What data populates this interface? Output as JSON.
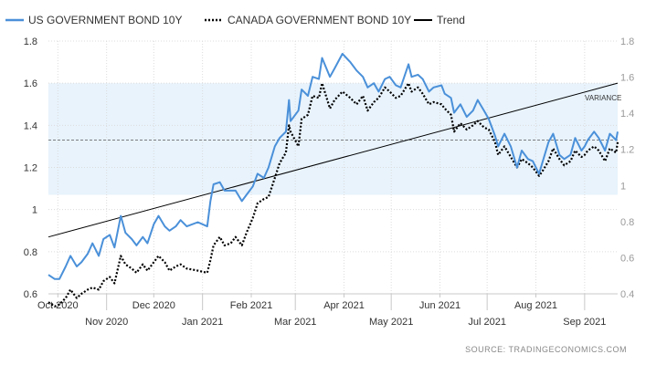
{
  "chart_data": {
    "type": "line",
    "legend": [
      {
        "key": "us",
        "label": "US GOVERNMENT BOND 10Y",
        "color": "#4a90d9",
        "style": "solid"
      },
      {
        "key": "canada",
        "label": "CANADA GOVERNMENT BOND 10Y",
        "color": "#000000",
        "style": "dotted"
      },
      {
        "key": "trend",
        "label": "Trend",
        "color": "#000000",
        "style": "solid"
      }
    ],
    "legend_placement": "top-left",
    "x_ticks_top_row": [
      {
        "label": "Oct 2020",
        "date": "2020-10-01"
      },
      {
        "label": "Dec 2020",
        "date": "2020-12-01"
      },
      {
        "label": "Feb 2021",
        "date": "2021-02-01"
      },
      {
        "label": "Apr 2021",
        "date": "2021-04-01"
      },
      {
        "label": "Jun 2021",
        "date": "2021-06-01"
      },
      {
        "label": "Aug 2021",
        "date": "2021-08-01"
      }
    ],
    "x_ticks_bottom_row": [
      {
        "label": "Nov 2020",
        "date": "2020-11-01"
      },
      {
        "label": "Jan 2021",
        "date": "2021-01-01"
      },
      {
        "label": "Mar 2021",
        "date": "2021-03-01"
      },
      {
        "label": "May 2021",
        "date": "2021-05-01"
      },
      {
        "label": "Jul 2021",
        "date": "2021-07-01"
      },
      {
        "label": "Sep 2021",
        "date": "2021-09-01"
      }
    ],
    "x_range": [
      "2020-09-25",
      "2021-09-22"
    ],
    "y_left": {
      "ticks": [
        "0.6",
        "0.8",
        "1",
        "1.2",
        "1.4",
        "1.6",
        "1.8"
      ],
      "range": [
        0.6,
        1.8
      ]
    },
    "y_right": {
      "ticks": [
        "0.4",
        "0.6",
        "0.8",
        "1",
        "1.2",
        "1.4",
        "1.6",
        "1.8"
      ],
      "range": [
        0.4,
        1.8
      ]
    },
    "grid": true,
    "variance_band": {
      "label": "VARIANCE",
      "from": 1.07,
      "to": 1.6,
      "color": "#e8f3fc"
    },
    "mean_line": 1.33,
    "trend": {
      "start": [
        "2020-09-25",
        0.87
      ],
      "end": [
        "2021-09-22",
        1.6
      ]
    },
    "series": [
      {
        "key": "us",
        "name": "US GOVERNMENT BOND 10Y",
        "color": "#4a90d9",
        "points": [
          [
            "2020-09-25",
            0.69
          ],
          [
            "2020-09-29",
            0.67
          ],
          [
            "2020-10-02",
            0.67
          ],
          [
            "2020-10-06",
            0.73
          ],
          [
            "2020-10-09",
            0.78
          ],
          [
            "2020-10-13",
            0.73
          ],
          [
            "2020-10-16",
            0.75
          ],
          [
            "2020-10-20",
            0.79
          ],
          [
            "2020-10-23",
            0.84
          ],
          [
            "2020-10-27",
            0.78
          ],
          [
            "2020-10-30",
            0.86
          ],
          [
            "2020-11-03",
            0.88
          ],
          [
            "2020-11-06",
            0.82
          ],
          [
            "2020-11-10",
            0.97
          ],
          [
            "2020-11-13",
            0.89
          ],
          [
            "2020-11-17",
            0.86
          ],
          [
            "2020-11-20",
            0.83
          ],
          [
            "2020-11-24",
            0.87
          ],
          [
            "2020-11-27",
            0.84
          ],
          [
            "2020-12-01",
            0.93
          ],
          [
            "2020-12-04",
            0.97
          ],
          [
            "2020-12-08",
            0.92
          ],
          [
            "2020-12-11",
            0.9
          ],
          [
            "2020-12-15",
            0.92
          ],
          [
            "2020-12-18",
            0.95
          ],
          [
            "2020-12-22",
            0.92
          ],
          [
            "2020-12-29",
            0.94
          ],
          [
            "2021-01-04",
            0.92
          ],
          [
            "2021-01-06",
            1.04
          ],
          [
            "2021-01-08",
            1.12
          ],
          [
            "2021-01-12",
            1.13
          ],
          [
            "2021-01-15",
            1.09
          ],
          [
            "2021-01-19",
            1.09
          ],
          [
            "2021-01-22",
            1.09
          ],
          [
            "2021-01-26",
            1.04
          ],
          [
            "2021-01-29",
            1.07
          ],
          [
            "2021-02-02",
            1.11
          ],
          [
            "2021-02-05",
            1.17
          ],
          [
            "2021-02-09",
            1.15
          ],
          [
            "2021-02-12",
            1.2
          ],
          [
            "2021-02-16",
            1.3
          ],
          [
            "2021-02-19",
            1.34
          ],
          [
            "2021-02-23",
            1.37
          ],
          [
            "2021-02-25",
            1.52
          ],
          [
            "2021-02-26",
            1.42
          ],
          [
            "2021-03-03",
            1.47
          ],
          [
            "2021-03-05",
            1.57
          ],
          [
            "2021-03-09",
            1.54
          ],
          [
            "2021-03-12",
            1.63
          ],
          [
            "2021-03-16",
            1.62
          ],
          [
            "2021-03-18",
            1.72
          ],
          [
            "2021-03-23",
            1.63
          ],
          [
            "2021-03-26",
            1.67
          ],
          [
            "2021-03-31",
            1.74
          ],
          [
            "2021-04-05",
            1.7
          ],
          [
            "2021-04-09",
            1.66
          ],
          [
            "2021-04-13",
            1.63
          ],
          [
            "2021-04-16",
            1.58
          ],
          [
            "2021-04-20",
            1.6
          ],
          [
            "2021-04-23",
            1.56
          ],
          [
            "2021-04-27",
            1.62
          ],
          [
            "2021-04-30",
            1.63
          ],
          [
            "2021-05-04",
            1.59
          ],
          [
            "2021-05-07",
            1.58
          ],
          [
            "2021-05-12",
            1.69
          ],
          [
            "2021-05-14",
            1.63
          ],
          [
            "2021-05-18",
            1.64
          ],
          [
            "2021-05-21",
            1.62
          ],
          [
            "2021-05-25",
            1.56
          ],
          [
            "2021-05-28",
            1.58
          ],
          [
            "2021-06-02",
            1.59
          ],
          [
            "2021-06-04",
            1.55
          ],
          [
            "2021-06-08",
            1.53
          ],
          [
            "2021-06-10",
            1.46
          ],
          [
            "2021-06-14",
            1.5
          ],
          [
            "2021-06-18",
            1.44
          ],
          [
            "2021-06-22",
            1.47
          ],
          [
            "2021-06-25",
            1.52
          ],
          [
            "2021-06-29",
            1.47
          ],
          [
            "2021-07-02",
            1.43
          ],
          [
            "2021-07-06",
            1.35
          ],
          [
            "2021-07-08",
            1.3
          ],
          [
            "2021-07-12",
            1.36
          ],
          [
            "2021-07-16",
            1.3
          ],
          [
            "2021-07-20",
            1.2
          ],
          [
            "2021-07-23",
            1.28
          ],
          [
            "2021-07-27",
            1.24
          ],
          [
            "2021-07-30",
            1.23
          ],
          [
            "2021-08-03",
            1.17
          ],
          [
            "2021-08-05",
            1.22
          ],
          [
            "2021-08-09",
            1.32
          ],
          [
            "2021-08-12",
            1.36
          ],
          [
            "2021-08-16",
            1.26
          ],
          [
            "2021-08-19",
            1.24
          ],
          [
            "2021-08-23",
            1.26
          ],
          [
            "2021-08-26",
            1.34
          ],
          [
            "2021-08-30",
            1.28
          ],
          [
            "2021-09-01",
            1.3
          ],
          [
            "2021-09-03",
            1.33
          ],
          [
            "2021-09-07",
            1.37
          ],
          [
            "2021-09-10",
            1.34
          ],
          [
            "2021-09-14",
            1.28
          ],
          [
            "2021-09-17",
            1.36
          ],
          [
            "2021-09-21",
            1.33
          ],
          [
            "2021-09-22",
            1.37
          ]
        ]
      },
      {
        "key": "canada",
        "name": "CANADA GOVERNMENT BOND 10Y",
        "color": "#000000",
        "points": [
          [
            "2020-09-25",
            0.56
          ],
          [
            "2020-09-29",
            0.54
          ],
          [
            "2020-10-02",
            0.55
          ],
          [
            "2020-10-06",
            0.58
          ],
          [
            "2020-10-09",
            0.62
          ],
          [
            "2020-10-13",
            0.58
          ],
          [
            "2020-10-16",
            0.6
          ],
          [
            "2020-10-20",
            0.62
          ],
          [
            "2020-10-23",
            0.63
          ],
          [
            "2020-10-27",
            0.62
          ],
          [
            "2020-10-30",
            0.66
          ],
          [
            "2020-11-03",
            0.68
          ],
          [
            "2020-11-06",
            0.65
          ],
          [
            "2020-11-10",
            0.78
          ],
          [
            "2020-11-13",
            0.74
          ],
          [
            "2020-11-17",
            0.72
          ],
          [
            "2020-11-20",
            0.7
          ],
          [
            "2020-11-24",
            0.74
          ],
          [
            "2020-11-27",
            0.71
          ],
          [
            "2020-12-01",
            0.75
          ],
          [
            "2020-12-04",
            0.78
          ],
          [
            "2020-12-08",
            0.75
          ],
          [
            "2020-12-11",
            0.71
          ],
          [
            "2020-12-15",
            0.73
          ],
          [
            "2020-12-18",
            0.74
          ],
          [
            "2020-12-22",
            0.72
          ],
          [
            "2020-12-29",
            0.71
          ],
          [
            "2021-01-04",
            0.7
          ],
          [
            "2021-01-06",
            0.76
          ],
          [
            "2021-01-08",
            0.83
          ],
          [
            "2021-01-12",
            0.87
          ],
          [
            "2021-01-15",
            0.83
          ],
          [
            "2021-01-19",
            0.84
          ],
          [
            "2021-01-22",
            0.87
          ],
          [
            "2021-01-26",
            0.83
          ],
          [
            "2021-01-29",
            0.89
          ],
          [
            "2021-02-02",
            0.96
          ],
          [
            "2021-02-05",
            1.03
          ],
          [
            "2021-02-09",
            1.05
          ],
          [
            "2021-02-12",
            1.06
          ],
          [
            "2021-02-16",
            1.15
          ],
          [
            "2021-02-19",
            1.22
          ],
          [
            "2021-02-23",
            1.27
          ],
          [
            "2021-02-25",
            1.4
          ],
          [
            "2021-02-26",
            1.37
          ],
          [
            "2021-03-03",
            1.3
          ],
          [
            "2021-03-05",
            1.43
          ],
          [
            "2021-03-09",
            1.45
          ],
          [
            "2021-03-12",
            1.54
          ],
          [
            "2021-03-16",
            1.53
          ],
          [
            "2021-03-18",
            1.6
          ],
          [
            "2021-03-23",
            1.48
          ],
          [
            "2021-03-26",
            1.52
          ],
          [
            "2021-03-31",
            1.56
          ],
          [
            "2021-04-05",
            1.53
          ],
          [
            "2021-04-09",
            1.5
          ],
          [
            "2021-04-13",
            1.54
          ],
          [
            "2021-04-16",
            1.47
          ],
          [
            "2021-04-20",
            1.51
          ],
          [
            "2021-04-23",
            1.53
          ],
          [
            "2021-04-27",
            1.58
          ],
          [
            "2021-04-30",
            1.56
          ],
          [
            "2021-05-04",
            1.53
          ],
          [
            "2021-05-07",
            1.54
          ],
          [
            "2021-05-12",
            1.6
          ],
          [
            "2021-05-14",
            1.56
          ],
          [
            "2021-05-18",
            1.58
          ],
          [
            "2021-05-21",
            1.55
          ],
          [
            "2021-05-25",
            1.5
          ],
          [
            "2021-05-28",
            1.51
          ],
          [
            "2021-06-02",
            1.5
          ],
          [
            "2021-06-04",
            1.48
          ],
          [
            "2021-06-08",
            1.45
          ],
          [
            "2021-06-10",
            1.37
          ],
          [
            "2021-06-14",
            1.41
          ],
          [
            "2021-06-18",
            1.38
          ],
          [
            "2021-06-22",
            1.4
          ],
          [
            "2021-06-25",
            1.42
          ],
          [
            "2021-06-29",
            1.39
          ],
          [
            "2021-07-02",
            1.38
          ],
          [
            "2021-07-06",
            1.32
          ],
          [
            "2021-07-08",
            1.26
          ],
          [
            "2021-07-12",
            1.3
          ],
          [
            "2021-07-16",
            1.25
          ],
          [
            "2021-07-20",
            1.2
          ],
          [
            "2021-07-23",
            1.24
          ],
          [
            "2021-07-27",
            1.22
          ],
          [
            "2021-07-30",
            1.2
          ],
          [
            "2021-08-03",
            1.16
          ],
          [
            "2021-08-05",
            1.18
          ],
          [
            "2021-08-09",
            1.23
          ],
          [
            "2021-08-12",
            1.29
          ],
          [
            "2021-08-16",
            1.24
          ],
          [
            "2021-08-19",
            1.21
          ],
          [
            "2021-08-23",
            1.23
          ],
          [
            "2021-08-26",
            1.28
          ],
          [
            "2021-08-30",
            1.25
          ],
          [
            "2021-09-01",
            1.26
          ],
          [
            "2021-09-03",
            1.28
          ],
          [
            "2021-09-07",
            1.3
          ],
          [
            "2021-09-10",
            1.28
          ],
          [
            "2021-09-14",
            1.23
          ],
          [
            "2021-09-17",
            1.29
          ],
          [
            "2021-09-21",
            1.27
          ],
          [
            "2021-09-22",
            1.32
          ]
        ]
      }
    ]
  },
  "source": "SOURCE:  TRADINGECONOMICS.COM"
}
